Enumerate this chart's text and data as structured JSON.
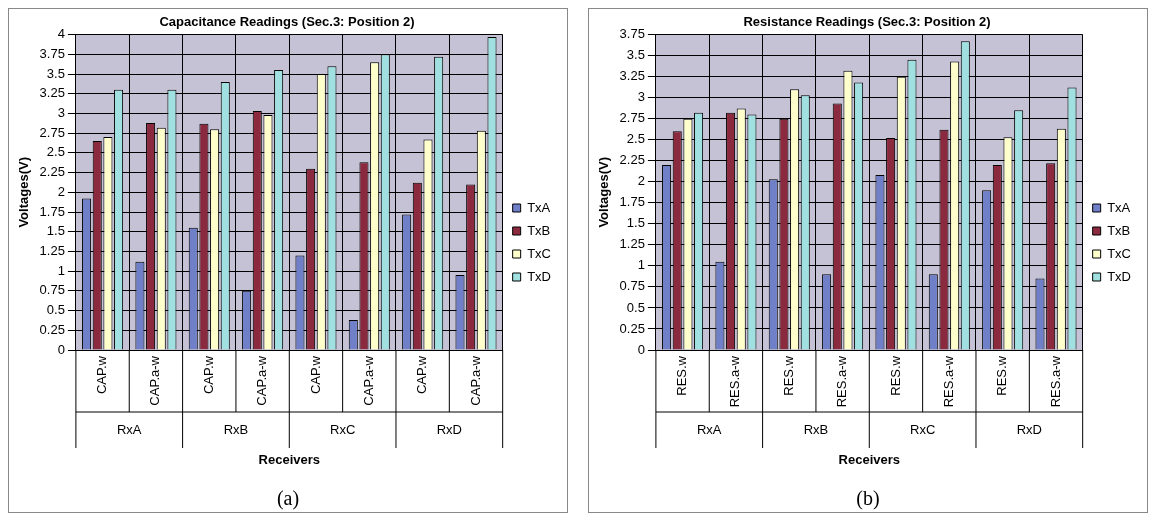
{
  "chart_data": [
    {
      "type": "bar",
      "title": "Capacitance Readings (Sec.3: Position 2)",
      "xlabel": "Receivers",
      "ylabel": "Voltages(V)",
      "categories": [
        "CAP.w",
        "CAP.a-w",
        "CAP.w",
        "CAP.a-w",
        "CAP.w",
        "CAP.a-w",
        "CAP.w",
        "CAP.a-w"
      ],
      "series": [
        {
          "name": "TxA",
          "color": "#6f7fc8",
          "values": [
            1.92,
            1.12,
            1.55,
            0.75,
            1.2,
            0.38,
            1.72,
            0.95
          ]
        },
        {
          "name": "TxB",
          "color": "#8b2a3f",
          "values": [
            2.65,
            2.88,
            2.87,
            3.03,
            2.3,
            2.38,
            2.12,
            2.1
          ]
        },
        {
          "name": "TxC",
          "color": "#ffffcc",
          "values": [
            2.7,
            2.82,
            2.8,
            2.98,
            3.5,
            3.65,
            2.67,
            2.78
          ]
        },
        {
          "name": "TxD",
          "color": "#a0e0e0",
          "values": [
            3.3,
            3.3,
            3.4,
            3.55,
            3.6,
            3.75,
            3.72,
            3.97
          ]
        }
      ],
      "ylim": [
        0,
        4
      ],
      "yticks": [
        0,
        0.25,
        0.5,
        0.75,
        1,
        1.25,
        1.5,
        1.75,
        2,
        2.25,
        2.5,
        2.75,
        3,
        3.25,
        3.5,
        3.75,
        4
      ],
      "grid": true,
      "legend": "right",
      "annotations": [
        "RxA",
        "RxB",
        "RxC",
        "RxD",
        "(a)"
      ]
    },
    {
      "type": "bar",
      "title": "Resistance Readings (Sec.3: Position 2)",
      "xlabel": "Receivers",
      "ylabel": "Voltages(V)",
      "categories": [
        "RES.w",
        "RES.a-w",
        "RES.w",
        "RES.a-w",
        "RES.w",
        "RES.a-w",
        "RES.w",
        "RES.a-w"
      ],
      "series": [
        {
          "name": "TxA",
          "color": "#6f7fc8",
          "values": [
            2.2,
            1.05,
            2.03,
            0.9,
            2.08,
            0.9,
            1.9,
            0.85
          ]
        },
        {
          "name": "TxB",
          "color": "#8b2a3f",
          "values": [
            2.6,
            2.82,
            2.75,
            2.93,
            2.52,
            2.62,
            2.2,
            2.22
          ]
        },
        {
          "name": "TxC",
          "color": "#ffffcc",
          "values": [
            2.75,
            2.87,
            3.1,
            3.32,
            3.25,
            3.43,
            2.53,
            2.63
          ]
        },
        {
          "name": "TxD",
          "color": "#a0e0e0",
          "values": [
            2.82,
            2.8,
            3.03,
            3.18,
            3.45,
            3.67,
            2.85,
            3.12
          ]
        }
      ],
      "ylim": [
        0,
        3.75
      ],
      "yticks": [
        0,
        0.25,
        0.5,
        0.75,
        1,
        1.25,
        1.5,
        1.75,
        2,
        2.25,
        2.5,
        2.75,
        3,
        3.25,
        3.5,
        3.75
      ],
      "grid": true,
      "legend": "right",
      "annotations": [
        "RxA",
        "RxB",
        "RxC",
        "RxD",
        "(b)"
      ]
    }
  ]
}
